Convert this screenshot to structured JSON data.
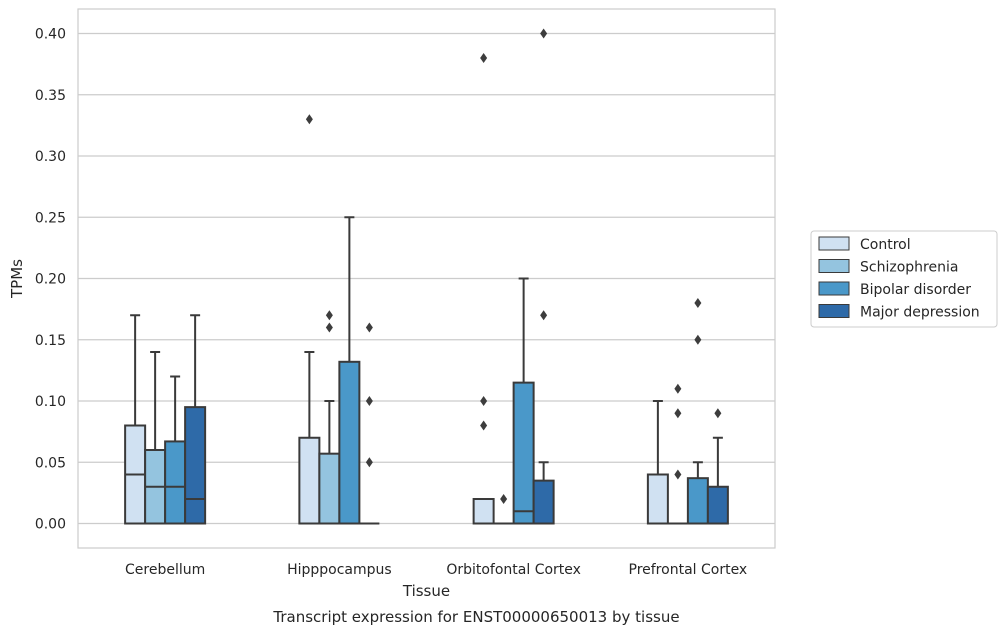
{
  "caption": "Transcript expression for ENST00000650013 by tissue",
  "chart_data": {
    "type": "box",
    "title": "",
    "xlabel": "Tissue",
    "ylabel": "TPMs",
    "ylim": [
      -0.02,
      0.42
    ],
    "yticks": [
      "0.00",
      "0.05",
      "0.10",
      "0.15",
      "0.20",
      "0.25",
      "0.30",
      "0.35",
      "0.40"
    ],
    "grid": "horizontal",
    "legend_position": "right",
    "categories": [
      "Cerebellum",
      "Hipppocampus",
      "Orbitofontal Cortex",
      "Prefrontal Cortex"
    ],
    "series": [
      {
        "name": "Control",
        "color": "#d0e1f2",
        "boxes": [
          {
            "q1": 0.0,
            "median": 0.04,
            "q3": 0.08,
            "whisker_low": 0.0,
            "whisker_high": 0.17,
            "outliers": []
          },
          {
            "q1": 0.0,
            "median": 0.0,
            "q3": 0.07,
            "whisker_low": 0.0,
            "whisker_high": 0.14,
            "outliers": [
              0.33
            ]
          },
          {
            "q1": 0.0,
            "median": 0.0,
            "q3": 0.02,
            "whisker_low": 0.0,
            "whisker_high": 0.02,
            "outliers": [
              0.08,
              0.1,
              0.38
            ]
          },
          {
            "q1": 0.0,
            "median": 0.0,
            "q3": 0.04,
            "whisker_low": 0.0,
            "whisker_high": 0.1,
            "outliers": []
          }
        ]
      },
      {
        "name": "Schizophrenia",
        "color": "#94c4df",
        "boxes": [
          {
            "q1": 0.0,
            "median": 0.03,
            "q3": 0.06,
            "whisker_low": 0.0,
            "whisker_high": 0.14,
            "outliers": []
          },
          {
            "q1": 0.0,
            "median": 0.0,
            "q3": 0.057,
            "whisker_low": 0.0,
            "whisker_high": 0.1,
            "outliers": [
              0.16,
              0.17
            ]
          },
          {
            "q1": 0.0,
            "median": 0.0,
            "q3": 0.0,
            "whisker_low": 0.0,
            "whisker_high": 0.0,
            "outliers": [
              0.02
            ]
          },
          {
            "q1": 0.0,
            "median": 0.0,
            "q3": 0.0,
            "whisker_low": 0.0,
            "whisker_high": 0.0,
            "outliers": [
              0.04,
              0.09,
              0.11
            ]
          }
        ]
      },
      {
        "name": "Bipolar disorder",
        "color": "#4a98c9",
        "boxes": [
          {
            "q1": 0.0,
            "median": 0.03,
            "q3": 0.067,
            "whisker_low": 0.0,
            "whisker_high": 0.12,
            "outliers": []
          },
          {
            "q1": 0.0,
            "median": 0.0,
            "q3": 0.132,
            "whisker_low": 0.0,
            "whisker_high": 0.25,
            "outliers": []
          },
          {
            "q1": 0.0,
            "median": 0.01,
            "q3": 0.115,
            "whisker_low": 0.0,
            "whisker_high": 0.2,
            "outliers": []
          },
          {
            "q1": 0.0,
            "median": 0.0,
            "q3": 0.037,
            "whisker_low": 0.0,
            "whisker_high": 0.05,
            "outliers": [
              0.15,
              0.18
            ]
          }
        ]
      },
      {
        "name": "Major depression",
        "color": "#2e6aa8",
        "boxes": [
          {
            "q1": 0.0,
            "median": 0.02,
            "q3": 0.095,
            "whisker_low": 0.0,
            "whisker_high": 0.17,
            "outliers": []
          },
          {
            "q1": 0.0,
            "median": 0.0,
            "q3": 0.0,
            "whisker_low": 0.0,
            "whisker_high": 0.0,
            "outliers": [
              0.05,
              0.1,
              0.16
            ]
          },
          {
            "q1": 0.0,
            "median": 0.0,
            "q3": 0.035,
            "whisker_low": 0.0,
            "whisker_high": 0.05,
            "outliers": [
              0.17,
              0.4
            ]
          },
          {
            "q1": 0.0,
            "median": 0.0,
            "q3": 0.03,
            "whisker_low": 0.0,
            "whisker_high": 0.07,
            "outliers": [
              0.09
            ]
          }
        ]
      }
    ]
  }
}
